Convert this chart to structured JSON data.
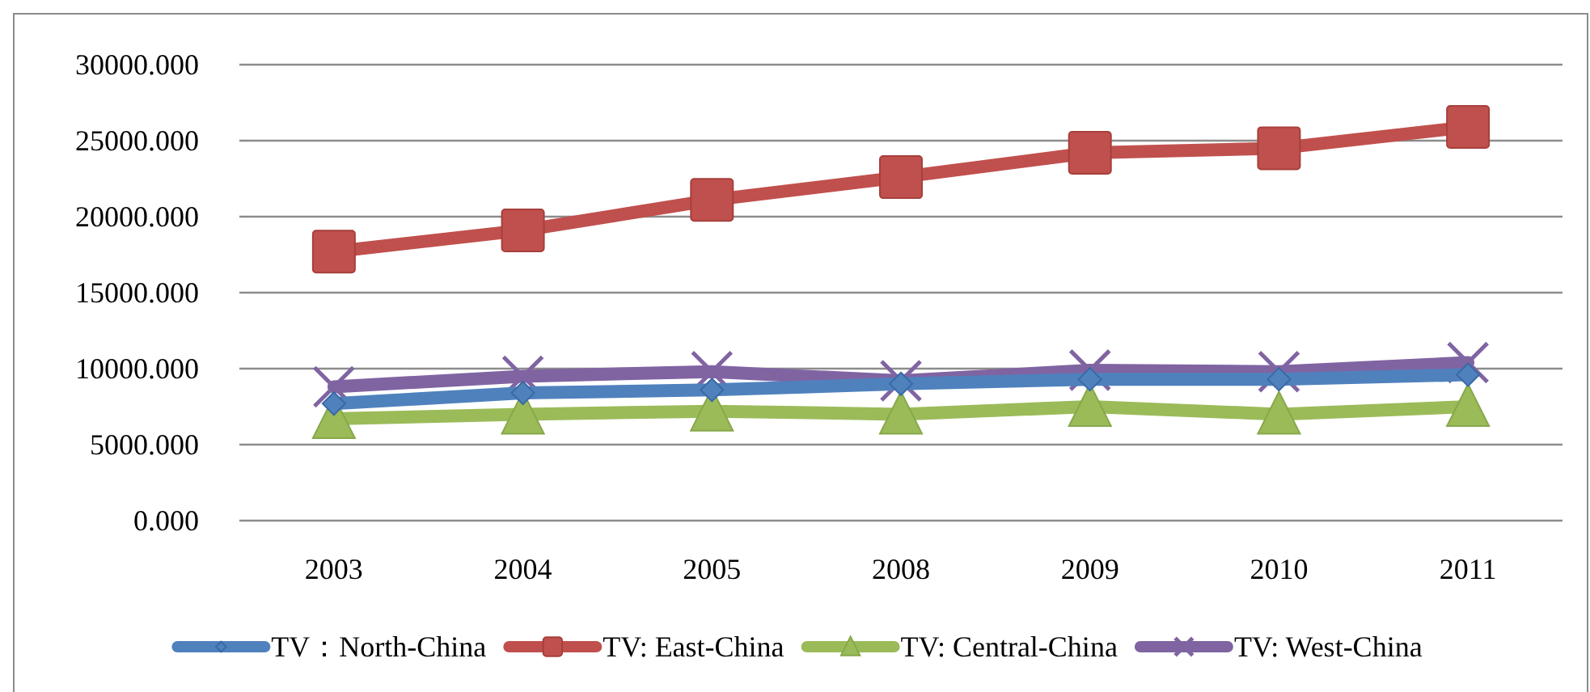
{
  "chart_data": {
    "type": "line",
    "categories": [
      "2003",
      "2004",
      "2005",
      "2008",
      "2009",
      "2010",
      "2011"
    ],
    "series": [
      {
        "name": "TV：North-China",
        "color": "#4f81bd",
        "marker": "diamond",
        "values": [
          7700,
          8400,
          8600,
          9000,
          9300,
          9300,
          9600
        ]
      },
      {
        "name": "TV: East-China",
        "color": "#c0504d",
        "marker": "square",
        "values": [
          17700,
          19100,
          21100,
          22600,
          24200,
          24500,
          25900
        ]
      },
      {
        "name": "TV: Central-China",
        "color": "#9bbb59",
        "marker": "triangle",
        "values": [
          6700,
          7000,
          7200,
          7000,
          7500,
          7000,
          7500
        ]
      },
      {
        "name": "TV: West-China",
        "color": "#8064a2",
        "marker": "cross",
        "values": [
          8800,
          9500,
          9800,
          9200,
          9900,
          9800,
          10400
        ]
      }
    ],
    "ylim": [
      0,
      30000
    ],
    "yticks": [
      {
        "value": 0,
        "label": "0.000"
      },
      {
        "value": 5000,
        "label": "5000.000"
      },
      {
        "value": 10000,
        "label": "10000.000"
      },
      {
        "value": 15000,
        "label": "15000.000"
      },
      {
        "value": 20000,
        "label": "20000.000"
      },
      {
        "value": 25000,
        "label": "25000.000"
      },
      {
        "value": 30000,
        "label": "30000.000"
      }
    ],
    "grid": "y",
    "legend": "bottom",
    "line_style": "solid"
  }
}
